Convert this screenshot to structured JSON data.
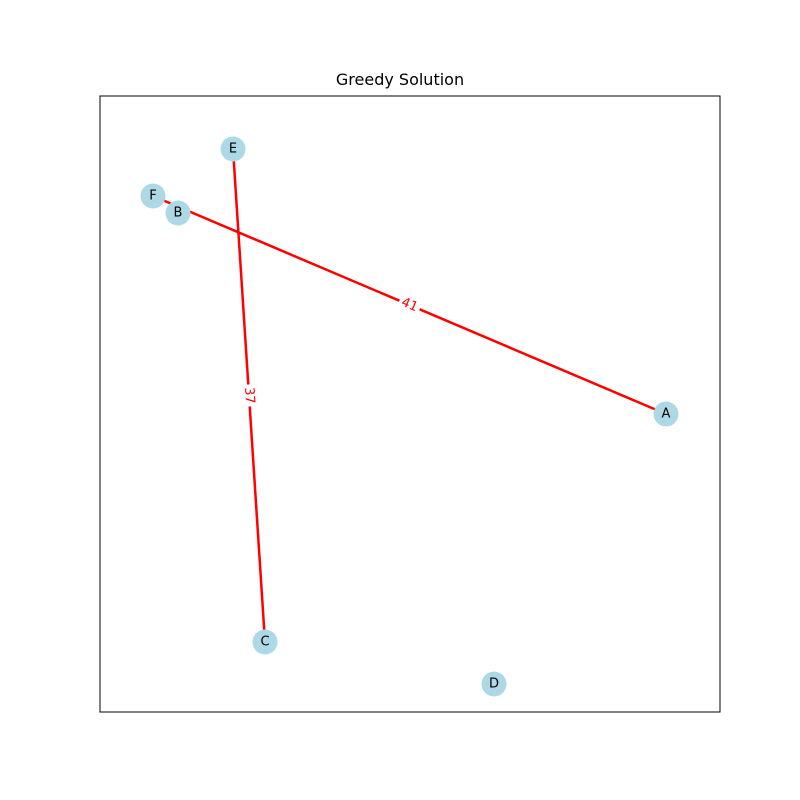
{
  "title": "Greedy Solution",
  "colors": {
    "node": "#add8e6",
    "edge": "#ff0000",
    "frame": "#000000"
  },
  "nodes": [
    {
      "id": "A",
      "label": "A"
    },
    {
      "id": "B",
      "label": "B"
    },
    {
      "id": "C",
      "label": "C"
    },
    {
      "id": "D",
      "label": "D"
    },
    {
      "id": "E",
      "label": "E"
    },
    {
      "id": "F",
      "label": "F"
    }
  ],
  "edges": [
    {
      "from": "F",
      "to": "A",
      "weight": "41"
    },
    {
      "from": "E",
      "to": "C",
      "weight": "37"
    }
  ]
}
